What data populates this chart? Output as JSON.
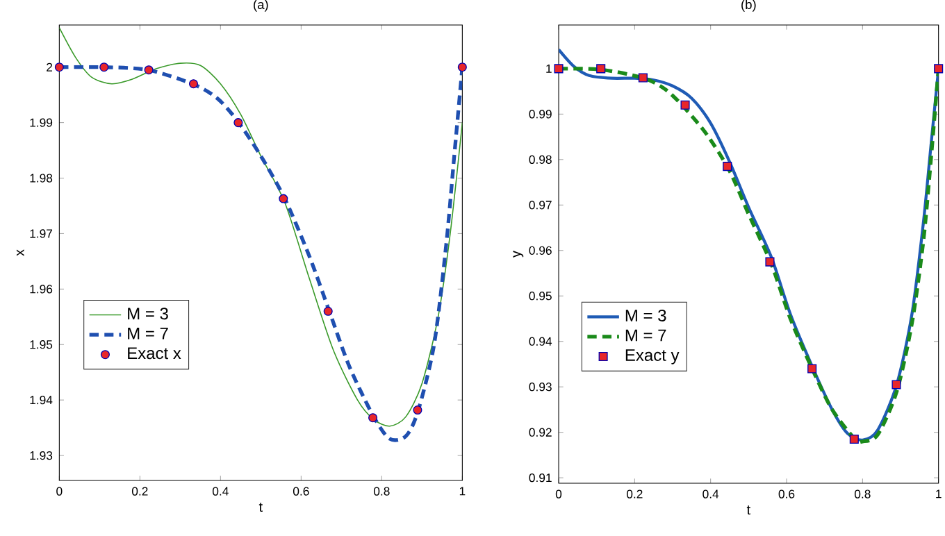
{
  "chart_data": [
    {
      "type": "line",
      "title": "(a)",
      "xlabel": "t",
      "ylabel": "x",
      "xlim": [
        0,
        1
      ],
      "ylim": [
        1.9255,
        2.0076
      ],
      "xticks": [
        0,
        0.2,
        0.4,
        0.6,
        0.8,
        1
      ],
      "yticks": [
        1.93,
        1.94,
        1.95,
        1.96,
        1.97,
        1.98,
        1.99,
        2
      ],
      "legend": "left",
      "series": [
        {
          "name": "M = 3",
          "color": "#3a9a2a",
          "line_style": "solid",
          "x": [
            0,
            0.04,
            0.08,
            0.13,
            0.18,
            0.24,
            0.3,
            0.35,
            0.4,
            0.45,
            0.5,
            0.56,
            0.62,
            0.68,
            0.74,
            0.78,
            0.82,
            0.86,
            0.9,
            0.94,
            0.97,
            1
          ],
          "values": [
            2.0071,
            2.0018,
            1.9982,
            1.997,
            1.9978,
            1.9997,
            2.0007,
            2.0003,
            1.997,
            1.9915,
            1.984,
            1.9755,
            1.962,
            1.949,
            1.94,
            1.9365,
            1.9353,
            1.937,
            1.943,
            1.955,
            1.97,
            1.99
          ]
        },
        {
          "name": "M = 7",
          "color": "#1f4fb0",
          "line_style": "dashed",
          "x": [
            0,
            0.11,
            0.22,
            0.33,
            0.39,
            0.44,
            0.5,
            0.56,
            0.62,
            0.67,
            0.72,
            0.78,
            0.82,
            0.86,
            0.89,
            0.93,
            0.96,
            0.98,
            1
          ],
          "values": [
            2.0,
            2.0,
            1.9995,
            1.997,
            1.9945,
            1.9905,
            1.984,
            1.9762,
            1.966,
            1.956,
            1.946,
            1.937,
            1.933,
            1.9335,
            1.938,
            1.95,
            1.968,
            1.984,
            2.0
          ]
        },
        {
          "name": "Exact  x",
          "type": "scatter",
          "color": "#e8262a",
          "marker": "circle",
          "x": [
            0,
            0.111,
            0.222,
            0.333,
            0.444,
            0.556,
            0.667,
            0.778,
            0.889,
            1
          ],
          "values": [
            2.0,
            2.0,
            1.9995,
            1.997,
            1.99,
            1.9763,
            1.956,
            1.9368,
            1.9382,
            2.0
          ]
        }
      ]
    },
    {
      "type": "line",
      "title": "(b)",
      "xlabel": "t",
      "ylabel": "y",
      "xlim": [
        0,
        1
      ],
      "ylim": [
        0.9088,
        1.0096
      ],
      "xticks": [
        0,
        0.2,
        0.4,
        0.6,
        0.8,
        1
      ],
      "yticks": [
        0.91,
        0.92,
        0.93,
        0.94,
        0.95,
        0.96,
        0.97,
        0.98,
        0.99,
        1
      ],
      "legend": "left",
      "series": [
        {
          "name": "M = 3",
          "color": "#1f5bb5",
          "line_style": "solid",
          "x": [
            0,
            0.04,
            0.08,
            0.14,
            0.2,
            0.25,
            0.3,
            0.35,
            0.4,
            0.45,
            0.5,
            0.56,
            0.61,
            0.67,
            0.72,
            0.76,
            0.8,
            0.84,
            0.89,
            0.93,
            0.96,
            0.98,
            1
          ],
          "values": [
            1.0042,
            1.0005,
            0.9985,
            0.9979,
            0.9979,
            0.9975,
            0.9962,
            0.9935,
            0.988,
            0.9795,
            0.9695,
            0.9585,
            0.946,
            0.934,
            0.925,
            0.9198,
            0.9183,
            0.9205,
            0.9305,
            0.946,
            0.966,
            0.983,
            1.0
          ]
        },
        {
          "name": "M = 7",
          "color": "#1a8a1a",
          "line_style": "dashed",
          "x": [
            0,
            0.11,
            0.22,
            0.28,
            0.33,
            0.39,
            0.45,
            0.5,
            0.56,
            0.61,
            0.67,
            0.72,
            0.78,
            0.8,
            0.84,
            0.89,
            0.93,
            0.96,
            0.98,
            1
          ],
          "values": [
            1.0,
            0.9998,
            0.998,
            0.9955,
            0.9915,
            0.9855,
            0.9775,
            0.968,
            0.957,
            0.945,
            0.9335,
            0.925,
            0.9185,
            0.918,
            0.9195,
            0.929,
            0.944,
            0.962,
            0.98,
            1.0
          ]
        },
        {
          "name": "Exact y",
          "type": "scatter",
          "color": "#e8262a",
          "marker": "square",
          "x": [
            0,
            0.111,
            0.222,
            0.333,
            0.444,
            0.556,
            0.667,
            0.778,
            0.889,
            1
          ],
          "values": [
            1.0,
            1.0,
            0.998,
            0.992,
            0.9785,
            0.9575,
            0.934,
            0.9185,
            0.9305,
            1.0
          ]
        }
      ]
    }
  ]
}
